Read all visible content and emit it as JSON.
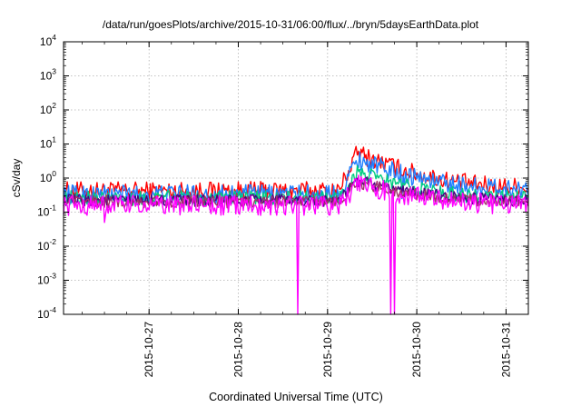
{
  "chart_data": {
    "type": "line",
    "title": "/data/run/goesPlots/archive/2015-10-31/06:00/flux/../bryn/5daysEarthData.plot",
    "xlabel": "Coordinated Universal Time (UTC)",
    "ylabel": "cSv/day",
    "yscale": "log",
    "ylim": [
      0.0001,
      10000
    ],
    "yticks": [
      {
        "value": 0.0001,
        "mant": "10",
        "exp": "-4"
      },
      {
        "value": 0.001,
        "mant": "10",
        "exp": "-3"
      },
      {
        "value": 0.01,
        "mant": "10",
        "exp": "-2"
      },
      {
        "value": 0.1,
        "mant": "10",
        "exp": "-1"
      },
      {
        "value": 1,
        "mant": "10",
        "exp": "0"
      },
      {
        "value": 10,
        "mant": "10",
        "exp": "1"
      },
      {
        "value": 100,
        "mant": "10",
        "exp": "2"
      },
      {
        "value": 1000,
        "mant": "10",
        "exp": "3"
      },
      {
        "value": 10000,
        "mant": "10",
        "exp": "4"
      }
    ],
    "xlim": [
      "2015-10-26 01:00",
      "2015-10-31 06:00"
    ],
    "xticks": [
      "2015-10-27",
      "2015-10-28",
      "2015-10-29",
      "2015-10-30",
      "2015-10-31"
    ],
    "grid": true,
    "legend": "none",
    "colors": {
      "red": "#ff0000",
      "blue": "#1f7fff",
      "green": "#00cc80",
      "navy": "#4b0082",
      "purple": "#a0306a",
      "magenta": "#ff00ff"
    },
    "series": [
      {
        "color": "red",
        "baseline": 0.42,
        "peak": 5.5,
        "end": 0.55,
        "noise": 0.28
      },
      {
        "color": "blue",
        "baseline": 0.34,
        "peak": 3.6,
        "end": 0.48,
        "noise": 0.28,
        "dips": [
          {
            "x": "2015-10-29 20:00",
            "value": 0.25
          }
        ]
      },
      {
        "color": "green",
        "baseline": 0.26,
        "peak": 1.5,
        "end": 0.26,
        "noise": 0.22
      },
      {
        "color": "navy",
        "baseline": 0.22,
        "peak": 0.85,
        "end": 0.22,
        "noise": 0.18
      },
      {
        "color": "purple",
        "baseline": 0.2,
        "peak": 0.75,
        "end": 0.2,
        "noise": 0.18
      },
      {
        "color": "magenta",
        "baseline": 0.16,
        "peak": 0.65,
        "end": 0.17,
        "noise": 0.3,
        "dips": [
          {
            "x": "2015-10-26 12:00",
            "value": 0.05
          },
          {
            "x": "2015-10-28 16:00",
            "value": 0.0001
          },
          {
            "x": "2015-10-29 17:00",
            "value": 0.0001
          },
          {
            "x": "2015-10-29 18:00",
            "value": 0.0001
          }
        ]
      }
    ],
    "event": {
      "start": "2015-10-29 03:00",
      "peak": "2015-10-29 08:00"
    }
  }
}
